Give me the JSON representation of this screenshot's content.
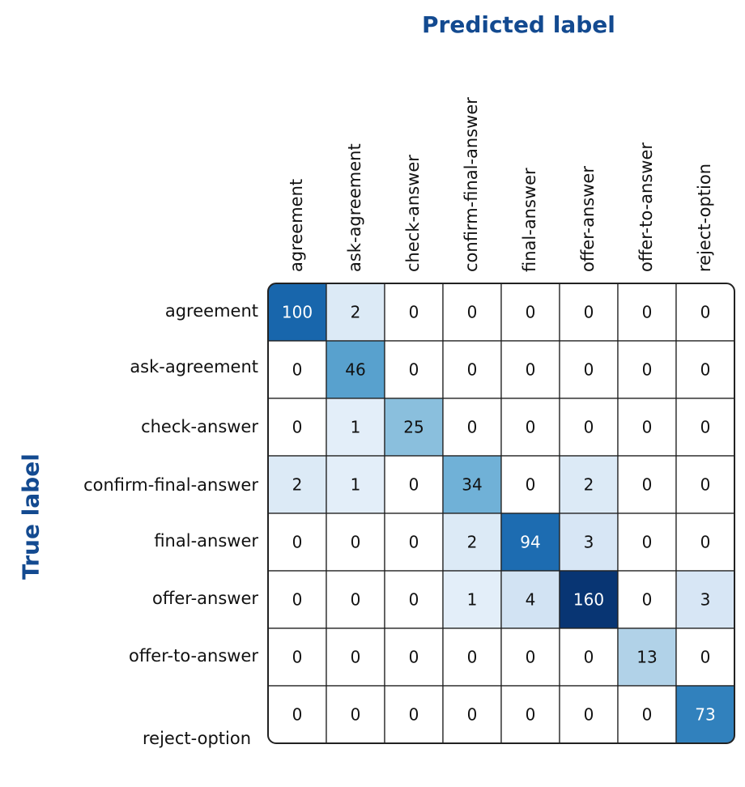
{
  "chart_data": {
    "type": "heatmap",
    "xlabel": "Predicted label",
    "ylabel": "True label",
    "predicted_labels": [
      "agreement",
      "ask-agreement",
      "check-answer",
      "confirm-final-answer",
      "final-answer",
      "offer-answer",
      "offer-to-answer",
      "reject-option"
    ],
    "true_labels": [
      "agreement",
      "ask-agreement",
      "check-answer",
      "confirm-final-answer",
      "final-answer",
      "offer-answer",
      "offer-to-answer",
      "reject-option"
    ],
    "matrix": [
      [
        100,
        2,
        0,
        0,
        0,
        0,
        0,
        0
      ],
      [
        0,
        46,
        0,
        0,
        0,
        0,
        0,
        0
      ],
      [
        0,
        1,
        25,
        0,
        0,
        0,
        0,
        0
      ],
      [
        2,
        1,
        0,
        34,
        0,
        2,
        0,
        0
      ],
      [
        0,
        0,
        0,
        2,
        94,
        3,
        0,
        0
      ],
      [
        0,
        0,
        0,
        1,
        4,
        160,
        0,
        3
      ],
      [
        0,
        0,
        0,
        0,
        0,
        0,
        13,
        0
      ],
      [
        0,
        0,
        0,
        0,
        0,
        0,
        0,
        73
      ]
    ],
    "colormap": "Blues",
    "title_color": "#134a90"
  }
}
